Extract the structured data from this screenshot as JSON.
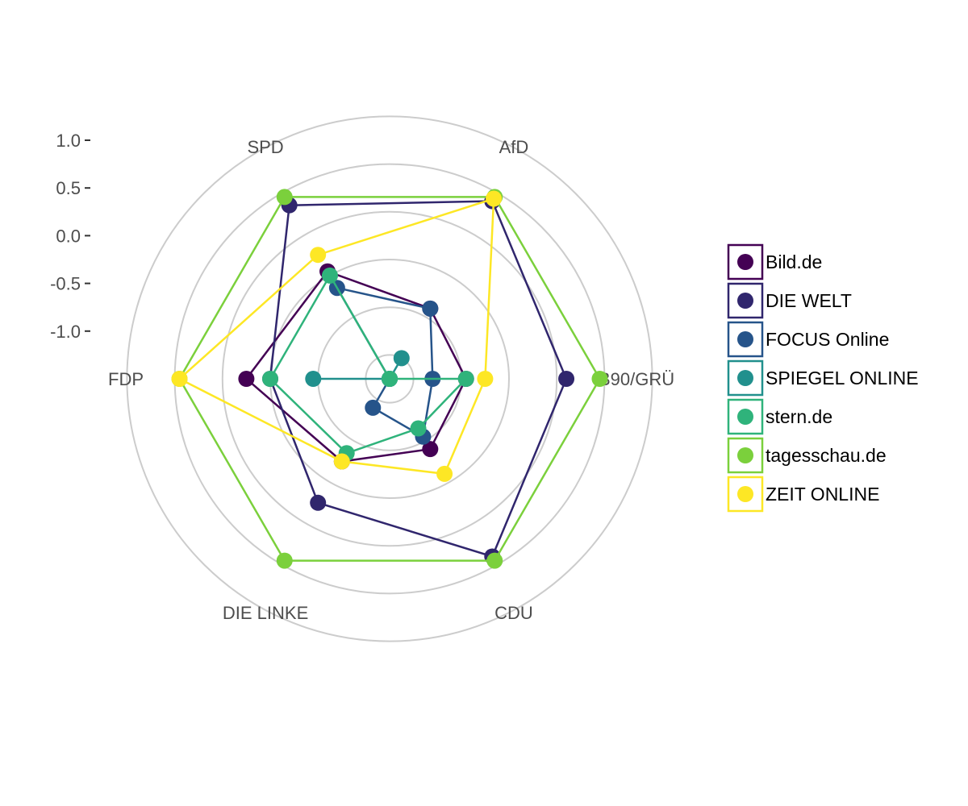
{
  "chart_data": {
    "type": "radar",
    "axes": [
      "AfD",
      "B90/GRÜ",
      "CDU",
      "DIE LINKE",
      "FDP",
      "SPD"
    ],
    "rlim": [
      -1.5,
      1.0
    ],
    "yticks": [
      "1.0",
      "0.5",
      "0.0",
      "-0.5",
      "-1.0"
    ],
    "ytick_values": [
      1.0,
      0.5,
      0.0,
      -0.5,
      -1.0
    ],
    "grid": true,
    "legend_position": "right",
    "series": [
      {
        "name": "Bild.de",
        "color": "#440154",
        "values": [
          -0.65,
          -0.7,
          -0.65,
          -0.5,
          0.0,
          -0.2
        ]
      },
      {
        "name": "DIE WELT",
        "color": "#30266d",
        "values": [
          0.65,
          0.35,
          0.65,
          -0.0,
          -0.25,
          0.6
        ]
      },
      {
        "name": "FOCUS Online",
        "color": "#26548a",
        "values": [
          -0.65,
          -1.05,
          -0.8,
          -1.15,
          -1.5,
          -0.4
        ]
      },
      {
        "name": "SPIEGEL ONLINE",
        "color": "#21908d",
        "values": [
          -1.25,
          -1.5,
          -1.5,
          -1.5,
          -0.7,
          -1.5
        ]
      },
      {
        "name": "stern.de",
        "color": "#2fb37b",
        "values": [
          -1.5,
          -0.7,
          -0.9,
          -0.6,
          -0.25,
          -0.25
        ]
      },
      {
        "name": "tagesschau.de",
        "color": "#7bd03c",
        "values": [
          0.7,
          0.7,
          0.7,
          0.7,
          0.7,
          0.7
        ]
      },
      {
        "name": "ZEIT ONLINE",
        "color": "#fde725",
        "values": [
          0.68,
          -0.5,
          -0.35,
          -0.5,
          0.7,
          0.0
        ]
      }
    ]
  }
}
